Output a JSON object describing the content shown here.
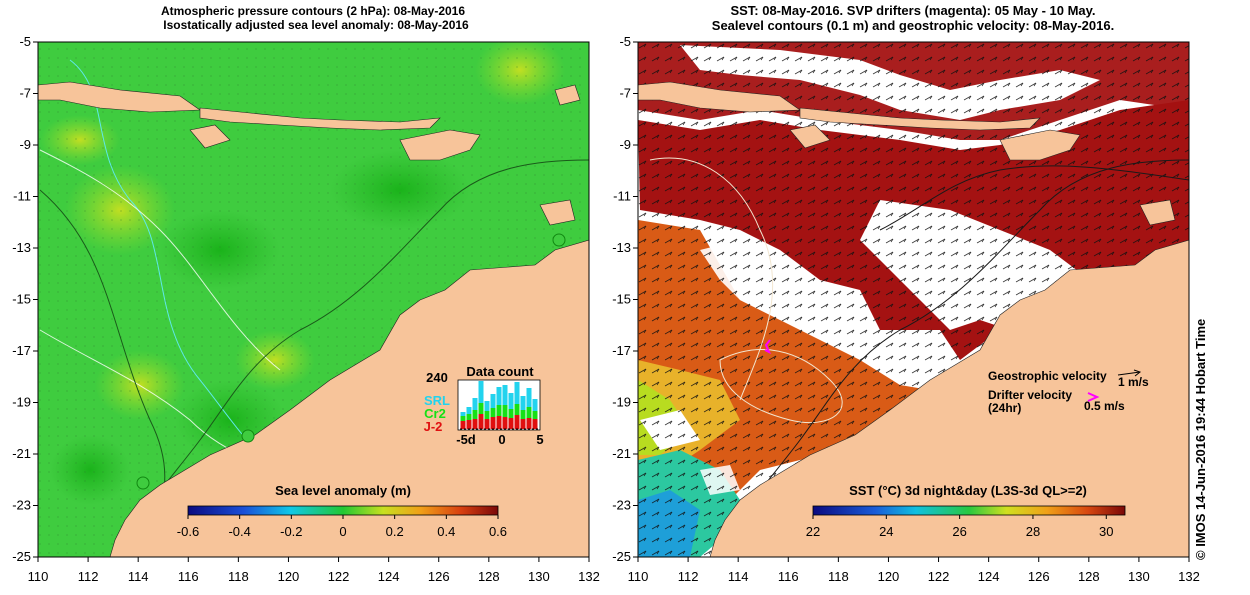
{
  "colors": {
    "land": "#f7c49a",
    "ocean_green": "#3fcc3f",
    "ocean_green_dark": "#22b422",
    "ocean_lime": "#8edc2e",
    "sst_warm": "#d95b16",
    "sst_hot": "#a41212",
    "sst_mid": "#e8b22a",
    "sst_cool": "#1e9fd8",
    "magenta": "#ff00ff",
    "srl": "#22d3ee",
    "cr2": "#16e016",
    "j2": "#e01010"
  },
  "left_panel": {
    "title_line1": "Atmospheric pressure contours (2 hPa): 08-May-2016",
    "title_line2": "Isostatically adjusted sea level anomaly: 08-May-2016",
    "colorbar": {
      "title": "Sea level anomaly (m)",
      "ticks": [
        "-0.6",
        "-0.4",
        "-0.2",
        "0",
        "0.2",
        "0.4",
        "0.6"
      ]
    },
    "data_count": {
      "title": "Data count",
      "ymax_label": "240",
      "xticks": [
        "-5d",
        "0",
        "5"
      ],
      "legend": [
        "SRL",
        "Cr2",
        "J-2"
      ],
      "bars": [
        {
          "srl": 20,
          "cr2": 25,
          "j2": 40
        },
        {
          "srl": 35,
          "cr2": 30,
          "j2": 45
        },
        {
          "srl": 60,
          "cr2": 45,
          "j2": 50
        },
        {
          "srl": 110,
          "cr2": 55,
          "j2": 75
        },
        {
          "srl": 50,
          "cr2": 40,
          "j2": 50
        },
        {
          "srl": 70,
          "cr2": 45,
          "j2": 60
        },
        {
          "srl": 90,
          "cr2": 55,
          "j2": 65
        },
        {
          "srl": 100,
          "cr2": 60,
          "j2": 60
        },
        {
          "srl": 80,
          "cr2": 45,
          "j2": 55
        },
        {
          "srl": 110,
          "cr2": 55,
          "j2": 70
        },
        {
          "srl": 70,
          "cr2": 45,
          "j2": 50
        },
        {
          "srl": 95,
          "cr2": 55,
          "j2": 55
        },
        {
          "srl": 60,
          "cr2": 40,
          "j2": 50
        }
      ]
    }
  },
  "right_panel": {
    "title_line1": "SST: 08-May-2016. SVP drifters (magenta): 05 May - 10 May.",
    "title_line2": "Sealevel contours (0.1 m) and geostrophic velocity: 08-May-2016.",
    "colorbar": {
      "title": "SST (°C) 3d night&day (L3S-3d QL>=2)",
      "ticks": [
        "22",
        "24",
        "26",
        "28",
        "30"
      ]
    },
    "legend": {
      "geostrophic_label": "Geostrophic velocity",
      "geostrophic_value": "1 m/s",
      "drifter_label": "Drifter velocity",
      "drifter_sub": "(24hr)",
      "drifter_value": "0.5 m/s"
    }
  },
  "axes": {
    "xticks": [
      "110",
      "112",
      "114",
      "116",
      "118",
      "120",
      "122",
      "124",
      "126",
      "128",
      "130",
      "132"
    ],
    "yticks": [
      "-5",
      "-7",
      "-9",
      "-11",
      "-13",
      "-15",
      "-17",
      "-19",
      "-21",
      "-23",
      "-25"
    ]
  },
  "credit": "© IMOS 14-Jun-2016 19:44 Hobart Time"
}
